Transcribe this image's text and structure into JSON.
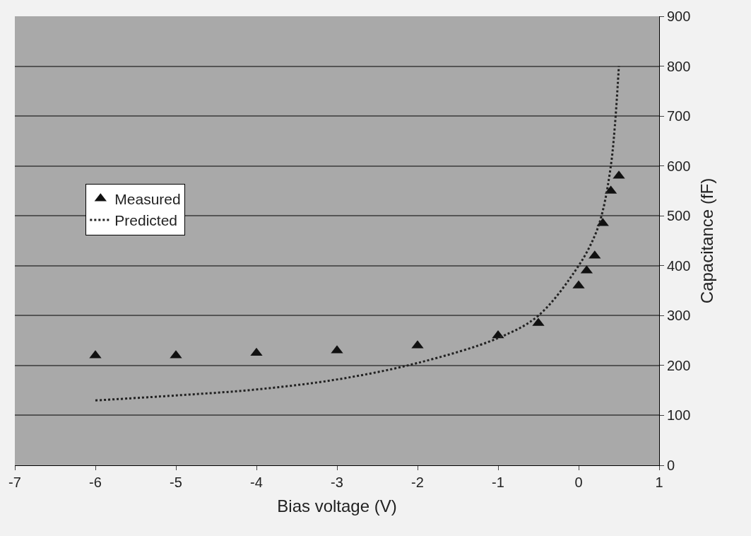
{
  "chart_data": {
    "type": "scatter",
    "xlabel": "Bias voltage (V)",
    "ylabel": "Capacitance (fF)",
    "xlim": [
      -7,
      1
    ],
    "xticks": [
      -7,
      -6,
      -5,
      -4,
      -3,
      -2,
      -1,
      0,
      1
    ],
    "ylim": [
      0,
      900
    ],
    "yticks": [
      0,
      100,
      200,
      300,
      400,
      500,
      600,
      700,
      800,
      900
    ],
    "grid": "y",
    "legend": "left",
    "series": [
      {
        "name": "Measured",
        "marker": "triangle",
        "color": "#111111",
        "x": [
          -6,
          -5,
          -4,
          -3,
          -2,
          -1,
          -0.5,
          0,
          0.1,
          0.2,
          0.3,
          0.4,
          0.5
        ],
        "values": [
          220,
          220,
          225,
          230,
          240,
          260,
          285,
          360,
          390,
          420,
          485,
          550,
          580
        ]
      },
      {
        "name": "Predicted",
        "type": "line",
        "line_style": "dotted",
        "color": "#222222",
        "x": [
          -6,
          -5,
          -4,
          -3,
          -2,
          -1,
          -0.5,
          0,
          0.2,
          0.3,
          0.4,
          0.45,
          0.5
        ],
        "values": [
          130,
          140,
          152,
          172,
          205,
          255,
          300,
          400,
          460,
          510,
          600,
          680,
          800
        ]
      }
    ]
  }
}
